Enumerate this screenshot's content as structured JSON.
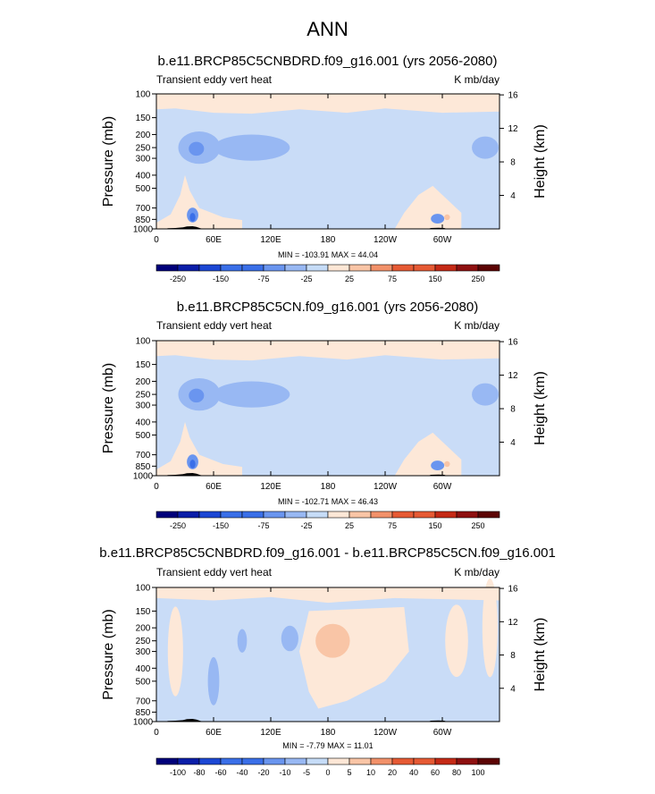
{
  "main_title": "ANN",
  "colors": {
    "palette_12": [
      "#00007a",
      "#0b1ea8",
      "#1c47d4",
      "#3a6fe8",
      "#6a95ef",
      "#98b8f3",
      "#c6dcf7",
      "#fde7d6",
      "#f9c5a6",
      "#f2916a",
      "#e65a34",
      "#c52a16",
      "#8e1010",
      "#5c0404"
    ],
    "neg_fill": "#c9dcf7",
    "pos_fill": "#fde8d8",
    "mid_neg": "#98b8f3",
    "strong_neg": "#6a95ef",
    "deep_neg": "#3a6fe8",
    "mid_pos": "#f9c5a6",
    "topo": "#000000"
  },
  "panels": [
    {
      "title": "b.e11.BRCP85C5CNBDRD.f09_g16.001 (yrs 2056-2080)",
      "left_label": "Transient eddy vert heat",
      "right_label": "K mb/day",
      "minmax": "MIN = -103.91  MAX = 44.04",
      "colorbar_labels": [
        "-250",
        "-150",
        "-75",
        "-25",
        "25",
        "75",
        "150",
        "250"
      ]
    },
    {
      "title": "b.e11.BRCP85C5CN.f09_g16.001 (yrs 2056-2080)",
      "left_label": "Transient eddy vert heat",
      "right_label": "K mb/day",
      "minmax": "MIN = -102.71  MAX = 46.43",
      "colorbar_labels": [
        "-250",
        "-150",
        "-75",
        "-25",
        "25",
        "75",
        "150",
        "250"
      ]
    },
    {
      "title": "b.e11.BRCP85C5CNBDRD.f09_g16.001 - b.e11.BRCP85C5CN.f09_g16.001",
      "left_label": "Transient eddy vert heat",
      "right_label": "K mb/day",
      "minmax": "MIN = -7.79  MAX = 11.01",
      "colorbar_labels": [
        "-100",
        "-80",
        "-60",
        "-40",
        "-20",
        "-10",
        "-5",
        "0",
        "5",
        "10",
        "20",
        "40",
        "60",
        "80",
        "100"
      ]
    }
  ],
  "chart_data": [
    {
      "type": "heatmap",
      "title": "b.e11.BRCP85C5CNBDRD.f09_g16.001 (yrs 2056-2080)",
      "ylabel": "Pressure (mb)",
      "y2label": "Height (km)",
      "x_ticks": [
        "0",
        "60E",
        "120E",
        "180",
        "120W",
        "60W"
      ],
      "x_tick_lon": [
        0,
        60,
        120,
        180,
        240,
        300
      ],
      "xlim": [
        0,
        360
      ],
      "y_ticks": [
        "100",
        "150",
        "200",
        "250",
        "300",
        "400",
        "500",
        "700",
        "850",
        "1000"
      ],
      "y_tick_p": [
        100,
        150,
        200,
        250,
        300,
        400,
        500,
        700,
        850,
        1000
      ],
      "ylim": [
        1000,
        100
      ],
      "y2_ticks": [
        "4",
        "8",
        "12",
        "16"
      ],
      "units": "K mb/day",
      "min": -103.91,
      "max": 44.04,
      "contour_levels": [
        -250,
        -200,
        -150,
        -100,
        -75,
        -50,
        -25,
        0,
        25,
        50,
        75,
        100,
        150,
        200,
        250
      ]
    },
    {
      "type": "heatmap",
      "title": "b.e11.BRCP85C5CN.f09_g16.001 (yrs 2056-2080)",
      "ylabel": "Pressure (mb)",
      "y2label": "Height (km)",
      "x_ticks": [
        "0",
        "60E",
        "120E",
        "180",
        "120W",
        "60W"
      ],
      "x_tick_lon": [
        0,
        60,
        120,
        180,
        240,
        300
      ],
      "xlim": [
        0,
        360
      ],
      "y_ticks": [
        "100",
        "150",
        "200",
        "250",
        "300",
        "400",
        "500",
        "700",
        "850",
        "1000"
      ],
      "y_tick_p": [
        100,
        150,
        200,
        250,
        300,
        400,
        500,
        700,
        850,
        1000
      ],
      "ylim": [
        1000,
        100
      ],
      "y2_ticks": [
        "4",
        "8",
        "12",
        "16"
      ],
      "units": "K mb/day",
      "min": -102.71,
      "max": 46.43,
      "contour_levels": [
        -250,
        -200,
        -150,
        -100,
        -75,
        -50,
        -25,
        0,
        25,
        50,
        75,
        100,
        150,
        200,
        250
      ]
    },
    {
      "type": "heatmap",
      "title": "b.e11.BRCP85C5CNBDRD.f09_g16.001 - b.e11.BRCP85C5CN.f09_g16.001",
      "ylabel": "Pressure (mb)",
      "y2label": "Height (km)",
      "x_ticks": [
        "0",
        "60E",
        "120E",
        "180",
        "120W",
        "60W"
      ],
      "x_tick_lon": [
        0,
        60,
        120,
        180,
        240,
        300
      ],
      "xlim": [
        0,
        360
      ],
      "y_ticks": [
        "100",
        "150",
        "200",
        "250",
        "300",
        "400",
        "500",
        "700",
        "850",
        "1000"
      ],
      "y_tick_p": [
        100,
        150,
        200,
        250,
        300,
        400,
        500,
        700,
        850,
        1000
      ],
      "ylim": [
        1000,
        100
      ],
      "y2_ticks": [
        "4",
        "8",
        "12",
        "16"
      ],
      "units": "K mb/day",
      "min": -7.79,
      "max": 11.01,
      "contour_levels": [
        -100,
        -80,
        -60,
        -40,
        -20,
        -10,
        -5,
        0,
        5,
        10,
        20,
        40,
        60,
        80,
        100
      ]
    }
  ]
}
